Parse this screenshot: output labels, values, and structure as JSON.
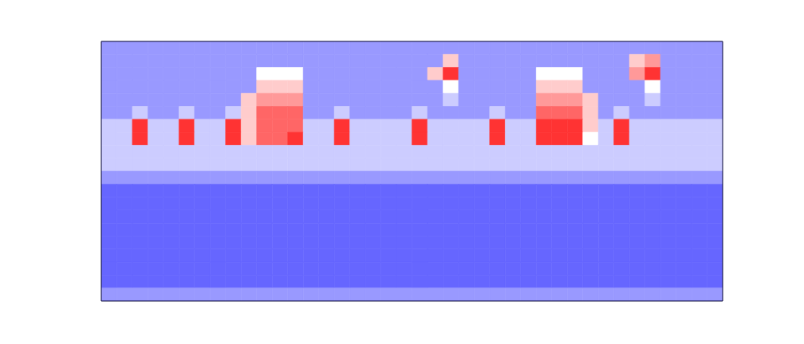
{
  "chart_data": {
    "type": "heatmap",
    "tick_labels": false,
    "zlim": [
      0,
      10
    ],
    "cells": [
      [
        3,
        3,
        3,
        3,
        3,
        3,
        3,
        3,
        3,
        3,
        3,
        3,
        3,
        3,
        3,
        3,
        3,
        3,
        3,
        3,
        3,
        3,
        3,
        3,
        3,
        3,
        3,
        3,
        3,
        3,
        3,
        3,
        3,
        3,
        3,
        3,
        3,
        3,
        3,
        3
      ],
      [
        3,
        3,
        3,
        3,
        3,
        3,
        3,
        3,
        3,
        3,
        3,
        3,
        3,
        3,
        3,
        3,
        3,
        3,
        3,
        3,
        3,
        3,
        6,
        3,
        3,
        3,
        3,
        3,
        3,
        3,
        3,
        3,
        3,
        3,
        6,
        7,
        3,
        3,
        3,
        3
      ],
      [
        3,
        3,
        3,
        3,
        3,
        3,
        3,
        3,
        3,
        3,
        5,
        5,
        5,
        3,
        3,
        3,
        3,
        3,
        3,
        3,
        3,
        6,
        9,
        3,
        3,
        3,
        3,
        3,
        5,
        5,
        5,
        3,
        3,
        3,
        7,
        9,
        3,
        3,
        3,
        3
      ],
      [
        3,
        3,
        3,
        3,
        3,
        3,
        3,
        3,
        3,
        3,
        6,
        6,
        6,
        3,
        3,
        3,
        3,
        3,
        3,
        3,
        3,
        3,
        5,
        3,
        3,
        3,
        3,
        3,
        6,
        6,
        6,
        3,
        3,
        3,
        3,
        5,
        3,
        3,
        3,
        3
      ],
      [
        3,
        3,
        3,
        3,
        3,
        3,
        3,
        3,
        3,
        6,
        7,
        7,
        7,
        3,
        3,
        3,
        3,
        3,
        3,
        3,
        3,
        3,
        4,
        3,
        3,
        3,
        3,
        3,
        7,
        7,
        7,
        6,
        3,
        3,
        3,
        4,
        3,
        3,
        3,
        3
      ],
      [
        3,
        3,
        4,
        3,
        3,
        4,
        3,
        3,
        4,
        6,
        8,
        8,
        8,
        3,
        3,
        4,
        3,
        3,
        3,
        3,
        4,
        3,
        3,
        3,
        3,
        4,
        3,
        3,
        8,
        8,
        8,
        6,
        3,
        4,
        3,
        3,
        3,
        3,
        3,
        3
      ],
      [
        4,
        4,
        9,
        4,
        4,
        9,
        4,
        4,
        9,
        6,
        8,
        8,
        8,
        4,
        4,
        9,
        4,
        4,
        4,
        4,
        9,
        4,
        4,
        4,
        4,
        9,
        4,
        4,
        9,
        9,
        9,
        6,
        4,
        9,
        4,
        4,
        4,
        4,
        4,
        4
      ],
      [
        4,
        4,
        9,
        4,
        4,
        9,
        4,
        4,
        9,
        6,
        8,
        8,
        9,
        4,
        4,
        9,
        4,
        4,
        4,
        4,
        9,
        4,
        4,
        4,
        4,
        9,
        4,
        4,
        9,
        9,
        9,
        5,
        4,
        9,
        4,
        4,
        4,
        4,
        4,
        4
      ],
      [
        4,
        4,
        4,
        4,
        4,
        4,
        4,
        4,
        4,
        4,
        4,
        4,
        4,
        4,
        4,
        4,
        4,
        4,
        4,
        4,
        4,
        4,
        4,
        4,
        4,
        4,
        4,
        4,
        4,
        4,
        4,
        4,
        4,
        4,
        4,
        4,
        4,
        4,
        4,
        4
      ],
      [
        4,
        4,
        4,
        4,
        4,
        4,
        4,
        4,
        4,
        4,
        4,
        4,
        4,
        4,
        4,
        4,
        4,
        4,
        4,
        4,
        4,
        4,
        4,
        4,
        4,
        4,
        4,
        4,
        4,
        4,
        4,
        4,
        4,
        4,
        4,
        4,
        4,
        4,
        4,
        4
      ],
      [
        3,
        3,
        3,
        3,
        3,
        3,
        3,
        3,
        3,
        3,
        3,
        3,
        3,
        3,
        3,
        3,
        3,
        3,
        3,
        3,
        3,
        3,
        3,
        3,
        3,
        3,
        3,
        3,
        3,
        3,
        3,
        3,
        3,
        3,
        3,
        3,
        3,
        3,
        3,
        3
      ],
      [
        2,
        2,
        2,
        2,
        2,
        2,
        2,
        2,
        2,
        2,
        2,
        2,
        2,
        2,
        2,
        2,
        2,
        2,
        2,
        2,
        2,
        2,
        2,
        2,
        2,
        2,
        2,
        2,
        2,
        2,
        2,
        2,
        2,
        2,
        2,
        2,
        2,
        2,
        2,
        2
      ],
      [
        2,
        2,
        2,
        2,
        2,
        2,
        2,
        2,
        2,
        2,
        2,
        2,
        2,
        2,
        2,
        2,
        2,
        2,
        2,
        2,
        2,
        2,
        2,
        2,
        2,
        2,
        2,
        2,
        2,
        2,
        2,
        2,
        2,
        2,
        2,
        2,
        2,
        2,
        2,
        2
      ],
      [
        2,
        2,
        2,
        2,
        2,
        2,
        2,
        2,
        2,
        2,
        2,
        2,
        2,
        2,
        2,
        2,
        2,
        2,
        2,
        2,
        2,
        2,
        2,
        2,
        2,
        2,
        2,
        2,
        2,
        2,
        2,
        2,
        2,
        2,
        2,
        2,
        2,
        2,
        2,
        2
      ],
      [
        2,
        2,
        2,
        2,
        2,
        2,
        2,
        2,
        2,
        2,
        2,
        2,
        2,
        2,
        2,
        2,
        2,
        2,
        2,
        2,
        2,
        2,
        2,
        2,
        2,
        2,
        2,
        2,
        2,
        2,
        2,
        2,
        2,
        2,
        2,
        2,
        2,
        2,
        2,
        2
      ],
      [
        2,
        2,
        2,
        2,
        2,
        2,
        2,
        2,
        2,
        2,
        2,
        2,
        2,
        2,
        2,
        2,
        2,
        2,
        2,
        2,
        2,
        2,
        2,
        2,
        2,
        2,
        2,
        2,
        2,
        2,
        2,
        2,
        2,
        2,
        2,
        2,
        2,
        2,
        2,
        2
      ],
      [
        2,
        2,
        2,
        2,
        2,
        2,
        2,
        2,
        2,
        2,
        2,
        2,
        2,
        2,
        2,
        2,
        2,
        2,
        2,
        2,
        2,
        2,
        2,
        2,
        2,
        2,
        2,
        2,
        2,
        2,
        2,
        2,
        2,
        2,
        2,
        2,
        2,
        2,
        2,
        2
      ],
      [
        2,
        2,
        2,
        2,
        2,
        2,
        2,
        2,
        2,
        2,
        2,
        2,
        2,
        2,
        2,
        2,
        2,
        2,
        2,
        2,
        2,
        2,
        2,
        2,
        2,
        2,
        2,
        2,
        2,
        2,
        2,
        2,
        2,
        2,
        2,
        2,
        2,
        2,
        2,
        2
      ],
      [
        2,
        2,
        2,
        2,
        2,
        2,
        2,
        2,
        2,
        2,
        2,
        2,
        2,
        2,
        2,
        2,
        2,
        2,
        2,
        2,
        2,
        2,
        2,
        2,
        2,
        2,
        2,
        2,
        2,
        2,
        2,
        2,
        2,
        2,
        2,
        2,
        2,
        2,
        2,
        2
      ],
      [
        3,
        3,
        3,
        3,
        3,
        3,
        3,
        3,
        3,
        3,
        3,
        3,
        3,
        3,
        3,
        3,
        3,
        3,
        3,
        3,
        3,
        3,
        3,
        3,
        3,
        3,
        3,
        3,
        3,
        3,
        3,
        3,
        3,
        3,
        3,
        3,
        3,
        3,
        3,
        3
      ]
    ]
  }
}
